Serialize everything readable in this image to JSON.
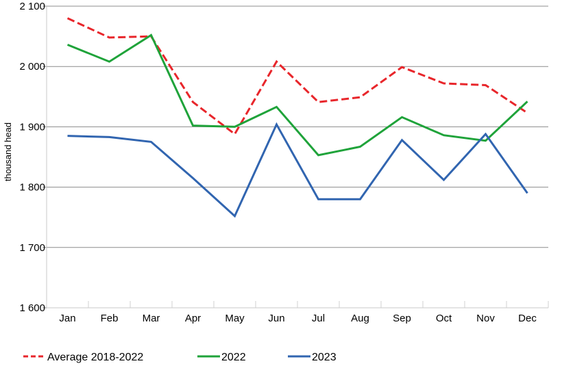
{
  "chart_data": {
    "type": "line",
    "ylabel": "thousand head",
    "ylim": [
      1600,
      2100
    ],
    "yticks": [
      1600,
      1700,
      1800,
      1900,
      2000,
      2100
    ],
    "ytick_labels": [
      "1 600",
      "1 700",
      "1 800",
      "1 900",
      "2 000",
      "2 100"
    ],
    "categories": [
      "Jan",
      "Feb",
      "Mar",
      "Apr",
      "May",
      "Jun",
      "Jul",
      "Aug",
      "Sep",
      "Oct",
      "Nov",
      "Dec"
    ],
    "grid": true,
    "legend_position": "bottom",
    "series": [
      {
        "name": "Average 2018-2022",
        "color": "#e8262b",
        "dash": "dashed",
        "values": [
          2080,
          2048,
          2050,
          1941,
          1888,
          2008,
          1941,
          1949,
          1999,
          1972,
          1969,
          1923
        ]
      },
      {
        "name": "2022",
        "color": "#1fa33a",
        "dash": "solid",
        "values": [
          2036,
          2008,
          2052,
          1902,
          1900,
          1933,
          1853,
          1867,
          1916,
          1886,
          1877,
          1942
        ]
      },
      {
        "name": "2023",
        "color": "#3165b0",
        "dash": "solid",
        "values": [
          1885,
          1883,
          1875,
          1815,
          1752,
          1904,
          1780,
          1780,
          1878,
          1812,
          1888,
          1790
        ]
      }
    ]
  }
}
